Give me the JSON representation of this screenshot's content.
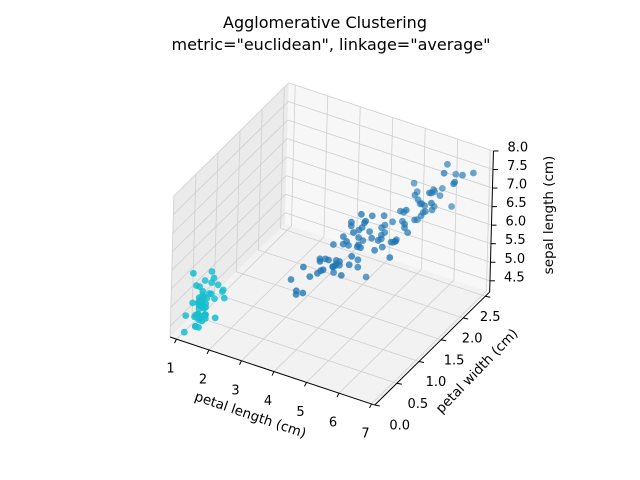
{
  "chart_data": {
    "type": "scatter",
    "projection": "3d",
    "title_lines": [
      "Agglomerative Clustering",
      "metric=\"euclidean\", linkage=\"average\""
    ],
    "xlabel": "petal length (cm)",
    "ylabel": "petal width (cm)",
    "zlabel": "sepal length (cm)",
    "xlim": [
      0.8,
      7.1
    ],
    "ylim": [
      0.0,
      2.6
    ],
    "zlim": [
      4.2,
      8.0
    ],
    "xticks": [
      "1",
      "2",
      "3",
      "4",
      "5",
      "6",
      "7"
    ],
    "yticks": [
      "0.0",
      "0.5",
      "1.0",
      "1.5",
      "2.0",
      "2.5"
    ],
    "zticks": [
      "4.5",
      "5.0",
      "5.5",
      "6.0",
      "6.5",
      "7.0",
      "7.5",
      "8.0"
    ],
    "grid": true,
    "point_format": [
      "petal length",
      "petal width",
      "sepal length"
    ],
    "series": [
      {
        "color": "#17becf",
        "points": [
          [
            1.4,
            0.2,
            5.1
          ],
          [
            1.4,
            0.2,
            4.9
          ],
          [
            1.3,
            0.2,
            4.7
          ],
          [
            1.5,
            0.2,
            4.6
          ],
          [
            1.4,
            0.2,
            5.0
          ],
          [
            1.7,
            0.4,
            5.4
          ],
          [
            1.4,
            0.3,
            4.6
          ],
          [
            1.5,
            0.2,
            5.0
          ],
          [
            1.4,
            0.2,
            4.4
          ],
          [
            1.5,
            0.1,
            4.9
          ],
          [
            1.5,
            0.2,
            5.4
          ],
          [
            1.6,
            0.2,
            4.8
          ],
          [
            1.4,
            0.1,
            4.8
          ],
          [
            1.1,
            0.1,
            4.3
          ],
          [
            1.2,
            0.2,
            5.8
          ],
          [
            1.5,
            0.4,
            5.7
          ],
          [
            1.3,
            0.4,
            5.4
          ],
          [
            1.4,
            0.3,
            5.1
          ],
          [
            1.7,
            0.3,
            5.7
          ],
          [
            1.5,
            0.3,
            5.1
          ],
          [
            1.7,
            0.2,
            5.4
          ],
          [
            1.5,
            0.4,
            5.1
          ],
          [
            1.0,
            0.2,
            4.6
          ],
          [
            1.7,
            0.5,
            5.1
          ],
          [
            1.9,
            0.2,
            4.8
          ],
          [
            1.6,
            0.2,
            5.0
          ],
          [
            1.6,
            0.4,
            5.0
          ],
          [
            1.5,
            0.2,
            5.2
          ],
          [
            1.4,
            0.2,
            5.2
          ],
          [
            1.6,
            0.2,
            4.7
          ],
          [
            1.6,
            0.2,
            4.8
          ],
          [
            1.5,
            0.4,
            5.4
          ],
          [
            1.5,
            0.1,
            5.2
          ],
          [
            1.4,
            0.2,
            5.5
          ],
          [
            1.5,
            0.1,
            4.9
          ],
          [
            1.2,
            0.2,
            5.0
          ],
          [
            1.3,
            0.2,
            5.5
          ],
          [
            1.5,
            0.1,
            4.9
          ],
          [
            1.3,
            0.2,
            4.4
          ],
          [
            1.5,
            0.2,
            5.1
          ],
          [
            1.3,
            0.3,
            5.0
          ],
          [
            1.3,
            0.3,
            4.5
          ],
          [
            1.3,
            0.2,
            4.4
          ],
          [
            1.6,
            0.6,
            5.0
          ],
          [
            1.9,
            0.4,
            5.1
          ],
          [
            1.4,
            0.3,
            4.8
          ],
          [
            1.6,
            0.2,
            5.1
          ],
          [
            1.4,
            0.2,
            4.6
          ],
          [
            1.5,
            0.2,
            5.3
          ],
          [
            1.4,
            0.2,
            5.0
          ]
        ]
      },
      {
        "color": "#1f77b4",
        "points": [
          [
            4.7,
            1.4,
            7.0
          ],
          [
            4.5,
            1.5,
            6.4
          ],
          [
            4.9,
            1.5,
            6.9
          ],
          [
            4.0,
            1.3,
            5.5
          ],
          [
            4.6,
            1.5,
            6.5
          ],
          [
            4.5,
            1.3,
            5.7
          ],
          [
            4.7,
            1.6,
            6.3
          ],
          [
            3.3,
            1.0,
            4.9
          ],
          [
            4.6,
            1.3,
            6.6
          ],
          [
            3.9,
            1.4,
            5.2
          ],
          [
            3.5,
            1.0,
            5.0
          ],
          [
            4.2,
            1.5,
            5.9
          ],
          [
            4.0,
            1.0,
            6.0
          ],
          [
            4.7,
            1.4,
            6.1
          ],
          [
            3.6,
            1.3,
            5.6
          ],
          [
            4.4,
            1.4,
            6.7
          ],
          [
            4.5,
            1.5,
            5.6
          ],
          [
            4.1,
            1.0,
            5.8
          ],
          [
            4.5,
            1.5,
            6.2
          ],
          [
            3.9,
            1.1,
            5.6
          ],
          [
            4.8,
            1.8,
            5.9
          ],
          [
            4.0,
            1.3,
            6.1
          ],
          [
            4.9,
            1.5,
            6.3
          ],
          [
            4.7,
            1.2,
            6.1
          ],
          [
            4.3,
            1.3,
            6.4
          ],
          [
            4.4,
            1.4,
            6.6
          ],
          [
            4.8,
            1.4,
            6.8
          ],
          [
            5.0,
            1.7,
            6.7
          ],
          [
            4.5,
            1.5,
            6.0
          ],
          [
            3.5,
            1.0,
            5.7
          ],
          [
            3.8,
            1.1,
            5.5
          ],
          [
            3.7,
            1.0,
            5.5
          ],
          [
            3.9,
            1.2,
            5.8
          ],
          [
            5.1,
            1.6,
            6.0
          ],
          [
            4.5,
            1.5,
            5.4
          ],
          [
            4.5,
            1.6,
            6.0
          ],
          [
            4.7,
            1.5,
            6.7
          ],
          [
            4.4,
            1.3,
            6.3
          ],
          [
            4.1,
            1.3,
            5.6
          ],
          [
            4.0,
            1.3,
            5.5
          ],
          [
            4.4,
            1.2,
            5.5
          ],
          [
            4.6,
            1.4,
            6.1
          ],
          [
            4.0,
            1.2,
            5.8
          ],
          [
            3.3,
            1.0,
            5.0
          ],
          [
            4.2,
            1.3,
            5.6
          ],
          [
            4.2,
            1.2,
            5.7
          ],
          [
            4.2,
            1.3,
            5.7
          ],
          [
            4.3,
            1.3,
            6.2
          ],
          [
            3.0,
            1.1,
            5.1
          ],
          [
            4.1,
            1.3,
            5.7
          ],
          [
            6.0,
            2.5,
            6.3
          ],
          [
            5.1,
            1.9,
            5.8
          ],
          [
            5.9,
            2.1,
            7.1
          ],
          [
            5.6,
            1.8,
            6.3
          ],
          [
            5.8,
            2.2,
            6.5
          ],
          [
            6.6,
            2.1,
            7.6
          ],
          [
            4.5,
            1.7,
            4.9
          ],
          [
            6.3,
            1.8,
            7.3
          ],
          [
            5.8,
            1.8,
            6.7
          ],
          [
            6.1,
            2.5,
            7.2
          ],
          [
            5.1,
            2.0,
            6.5
          ],
          [
            5.3,
            1.9,
            6.4
          ],
          [
            5.5,
            2.1,
            6.8
          ],
          [
            5.0,
            2.0,
            5.7
          ],
          [
            5.1,
            2.4,
            5.8
          ],
          [
            5.3,
            2.3,
            6.4
          ],
          [
            5.5,
            1.8,
            6.5
          ],
          [
            6.7,
            2.2,
            7.7
          ],
          [
            6.9,
            2.3,
            7.7
          ],
          [
            5.0,
            1.5,
            6.0
          ],
          [
            5.7,
            2.3,
            6.9
          ],
          [
            4.9,
            2.0,
            5.6
          ],
          [
            6.7,
            2.0,
            7.7
          ],
          [
            4.9,
            1.8,
            6.3
          ],
          [
            5.7,
            2.1,
            6.7
          ],
          [
            6.0,
            1.8,
            7.2
          ],
          [
            4.8,
            1.8,
            6.2
          ],
          [
            4.9,
            1.8,
            6.1
          ],
          [
            5.6,
            2.1,
            6.4
          ],
          [
            5.8,
            1.6,
            7.2
          ],
          [
            6.1,
            1.9,
            7.4
          ],
          [
            6.4,
            2.0,
            7.9
          ],
          [
            5.6,
            2.2,
            6.4
          ],
          [
            5.1,
            1.5,
            6.3
          ],
          [
            5.6,
            1.4,
            6.1
          ],
          [
            6.1,
            2.3,
            7.7
          ],
          [
            5.6,
            2.4,
            6.3
          ],
          [
            5.5,
            1.8,
            6.4
          ],
          [
            4.8,
            1.8,
            6.0
          ],
          [
            5.4,
            2.1,
            6.9
          ],
          [
            5.6,
            2.4,
            6.7
          ],
          [
            5.1,
            2.3,
            6.9
          ],
          [
            5.1,
            1.9,
            5.8
          ],
          [
            5.9,
            2.3,
            6.8
          ],
          [
            5.7,
            2.5,
            6.7
          ],
          [
            5.2,
            2.3,
            6.7
          ],
          [
            5.0,
            1.9,
            6.3
          ],
          [
            5.2,
            2.0,
            6.5
          ],
          [
            5.4,
            2.3,
            6.2
          ],
          [
            5.1,
            1.8,
            5.9
          ]
        ]
      }
    ]
  }
}
